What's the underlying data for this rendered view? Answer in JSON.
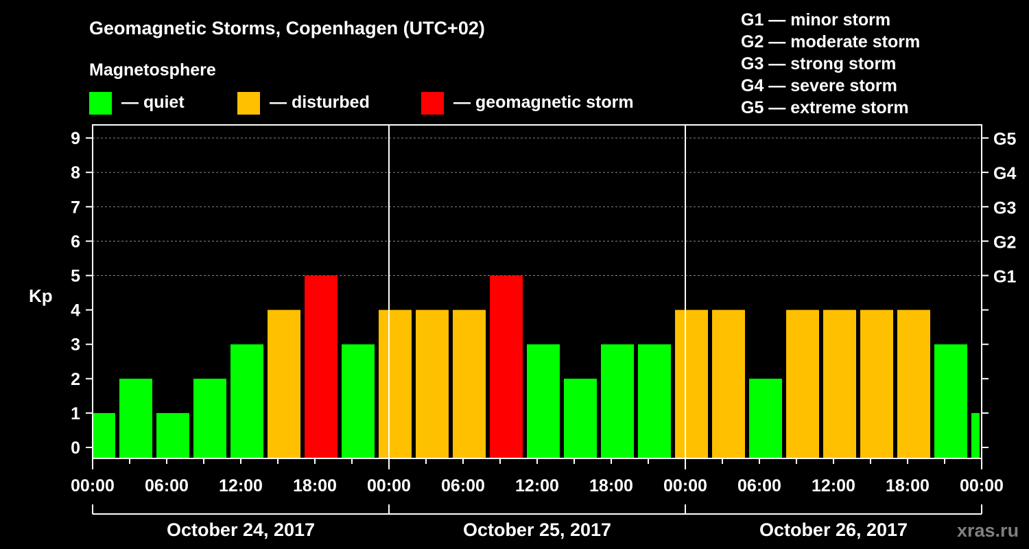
{
  "chart_data": {
    "type": "bar",
    "title": "Geomagnetic Storms, Copenhagen (UTC+02)",
    "legend_title": "Magnetosphere",
    "legend": [
      {
        "label": "— quiet",
        "color": "#00ff00"
      },
      {
        "label": "— disturbed",
        "color": "#ffc000"
      },
      {
        "label": "— geomagnetic storm",
        "color": "#ff0000"
      }
    ],
    "scale_legend": [
      "G1 — minor storm",
      "G2 — moderate storm",
      "G3 — strong storm",
      "G4 — severe storm",
      "G5 — extreme storm"
    ],
    "ylabel": "Kp",
    "ylim": [
      0,
      9
    ],
    "yticks": [
      "0",
      "1",
      "2",
      "3",
      "4",
      "5",
      "6",
      "7",
      "8",
      "9"
    ],
    "g_levels": [
      {
        "label": "G1",
        "kp": 5
      },
      {
        "label": "G2",
        "kp": 6
      },
      {
        "label": "G3",
        "kp": 7
      },
      {
        "label": "G4",
        "kp": 8
      },
      {
        "label": "G5",
        "kp": 9
      }
    ],
    "xticks": [
      "00:00",
      "06:00",
      "12:00",
      "18:00",
      "00:00",
      "06:00",
      "12:00",
      "18:00",
      "00:00",
      "06:00",
      "12:00",
      "18:00",
      "00:00"
    ],
    "days": [
      "October 24, 2017",
      "October 25, 2017",
      "October 26, 2017"
    ],
    "bar_interval_hours": 3,
    "first_bar_start_hour": -1,
    "values": [
      1,
      2,
      1,
      2,
      3,
      4,
      5,
      3,
      4,
      4,
      4,
      5,
      3,
      2,
      3,
      3,
      4,
      4,
      2,
      4,
      4,
      4,
      4,
      3,
      1
    ],
    "watermark": "xras.ru"
  }
}
